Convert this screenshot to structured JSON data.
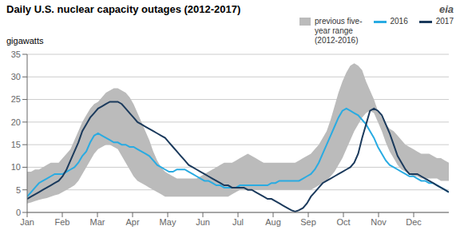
{
  "chart_data": {
    "type": "line",
    "title": "Daily U.S. nuclear capacity outages (2012-2017)",
    "ylabel": "gigawatts",
    "annotations": [
      "eia"
    ],
    "legend": "top",
    "grid": true,
    "xlim": [
      0,
      12
    ],
    "xticks": [
      {
        "value": 0,
        "label": "Jan"
      },
      {
        "value": 1,
        "label": "Feb"
      },
      {
        "value": 2,
        "label": "Mar"
      },
      {
        "value": 3,
        "label": "Apr"
      },
      {
        "value": 4,
        "label": "May"
      },
      {
        "value": 5,
        "label": "Jun"
      },
      {
        "value": 6,
        "label": "Jul"
      },
      {
        "value": 7,
        "label": "Aug"
      },
      {
        "value": 8,
        "label": "Sep"
      },
      {
        "value": 9,
        "label": "Oct"
      },
      {
        "value": 10,
        "label": "Nov"
      },
      {
        "value": 11,
        "label": "Dec"
      }
    ],
    "ylim": [
      0,
      35
    ],
    "yticks": [
      0,
      5,
      10,
      15,
      20,
      25,
      30,
      35
    ],
    "x": [
      0,
      0.1121,
      0.2243,
      0.3364,
      0.4486,
      0.5607,
      0.6729,
      0.785,
      0.8972,
      1.0093,
      1.1215,
      1.2336,
      1.3458,
      1.4579,
      1.5701,
      1.6822,
      1.7944,
      1.9065,
      2.0187,
      2.1308,
      2.243,
      2.3551,
      2.4673,
      2.5794,
      2.6916,
      2.8037,
      2.9159,
      3.028,
      3.1402,
      3.2523,
      3.3645,
      3.4766,
      3.5888,
      3.7009,
      3.8131,
      3.9252,
      4.0374,
      4.1495,
      4.2617,
      4.3738,
      4.486,
      4.5981,
      4.7103,
      4.8224,
      4.9346,
      5.0467,
      5.1589,
      5.271,
      5.3832,
      5.4953,
      5.6075,
      5.7196,
      5.8318,
      5.9439,
      6.0561,
      6.1682,
      6.2804,
      6.3925,
      6.5047,
      6.6168,
      6.729,
      6.8411,
      6.9533,
      7.0654,
      7.1776,
      7.2897,
      7.4019,
      7.514,
      7.6262,
      7.7383,
      7.8505,
      7.9626,
      8.0748,
      8.1869,
      8.2991,
      8.4112,
      8.5234,
      8.6355,
      8.7477,
      8.8598,
      8.972,
      9.0841,
      9.1963,
      9.3084,
      9.4206,
      9.5327,
      9.6449,
      9.757,
      9.8692,
      9.9813,
      10.0935,
      10.2056,
      10.3178,
      10.4299,
      10.5421,
      10.6542,
      10.7664,
      10.8785,
      10.9907,
      11.1028,
      11.215,
      11.3271,
      11.4393,
      11.5514,
      11.6636,
      11.7757,
      11.8879,
      12
    ],
    "series": [
      {
        "name": "previous five-\nyear range\n(2012-2016)",
        "type": "area",
        "color": "#BBBBBB",
        "low": [
          2.0,
          2.2,
          2.5,
          2.8,
          3.0,
          3.2,
          3.5,
          3.8,
          4.0,
          4.5,
          5.0,
          5.5,
          6.0,
          7.0,
          8.5,
          10.0,
          11.5,
          13.0,
          14.0,
          14.5,
          15.0,
          15.0,
          14.5,
          14.0,
          12.5,
          11.0,
          9.5,
          8.0,
          7.0,
          6.5,
          6.0,
          5.5,
          5.0,
          4.5,
          4.0,
          3.5,
          3.5,
          3.5,
          3.5,
          3.5,
          3.5,
          3.5,
          3.5,
          3.5,
          3.5,
          3.5,
          3.5,
          3.5,
          3.5,
          3.5,
          3.5,
          3.5,
          4.0,
          4.5,
          5.0,
          5.0,
          5.0,
          5.0,
          5.0,
          5.0,
          5.0,
          5.0,
          5.0,
          5.0,
          5.0,
          5.0,
          5.0,
          5.0,
          5.0,
          5.0,
          5.0,
          5.0,
          5.0,
          5.5,
          6.0,
          6.5,
          7.0,
          8.0,
          9.0,
          10.5,
          12.0,
          14.0,
          16.0,
          18.0,
          19.5,
          21.0,
          22.0,
          22.5,
          22.0,
          20.0,
          18.0,
          15.5,
          13.5,
          12.0,
          10.5,
          9.5,
          9.0,
          8.5,
          8.0,
          8.0,
          7.5,
          7.5,
          7.5,
          7.5,
          7.5,
          7.0,
          7.0,
          7.0
        ],
        "high": [
          9.0,
          9.0,
          9.5,
          9.5,
          10.0,
          10.5,
          11.0,
          11.0,
          11.0,
          12.0,
          13.0,
          14.0,
          16.0,
          18.0,
          20.0,
          21.5,
          23.0,
          24.0,
          24.5,
          25.5,
          26.5,
          27.0,
          27.5,
          27.5,
          27.0,
          26.5,
          25.5,
          24.0,
          22.0,
          20.0,
          18.0,
          16.0,
          13.5,
          11.5,
          10.0,
          9.0,
          8.5,
          8.0,
          7.5,
          7.5,
          7.5,
          7.5,
          7.5,
          7.5,
          8.0,
          8.5,
          9.0,
          9.5,
          10.0,
          10.5,
          11.0,
          11.0,
          11.0,
          11.5,
          12.0,
          12.5,
          13.0,
          12.5,
          12.0,
          11.5,
          11.0,
          11.0,
          11.0,
          11.0,
          11.0,
          11.0,
          11.0,
          11.0,
          11.0,
          11.5,
          12.0,
          12.5,
          13.0,
          14.0,
          15.0,
          16.5,
          18.0,
          20.5,
          23.5,
          26.5,
          29.0,
          31.0,
          32.5,
          33.0,
          32.5,
          31.5,
          29.0,
          27.0,
          25.0,
          22.5,
          21.0,
          19.5,
          18.5,
          18.0,
          17.0,
          16.0,
          15.0,
          14.5,
          14.0,
          13.5,
          13.0,
          13.0,
          13.0,
          12.5,
          12.0,
          12.0,
          11.5,
          11.0
        ]
      },
      {
        "name": "2016",
        "type": "line",
        "color": "#29ABE2",
        "values": [
          3.5,
          4.5,
          5.5,
          6.5,
          7.0,
          7.5,
          8.0,
          8.5,
          8.5,
          8.5,
          9.0,
          9.5,
          10.0,
          11.0,
          12.5,
          13.5,
          15.5,
          17.0,
          17.5,
          17.0,
          16.5,
          16.0,
          15.5,
          15.5,
          15.0,
          15.0,
          14.5,
          14.5,
          14.0,
          13.5,
          13.0,
          12.5,
          11.5,
          10.5,
          10.0,
          9.5,
          9.0,
          9.0,
          9.5,
          9.5,
          9.5,
          9.0,
          8.5,
          8.0,
          7.5,
          7.0,
          7.0,
          6.5,
          6.0,
          6.0,
          5.5,
          5.5,
          5.5,
          5.5,
          6.0,
          6.0,
          6.0,
          6.0,
          6.0,
          6.0,
          6.0,
          6.0,
          6.5,
          6.5,
          7.0,
          7.0,
          7.0,
          7.0,
          7.0,
          7.0,
          7.5,
          8.0,
          8.5,
          9.5,
          11.0,
          13.0,
          15.0,
          17.0,
          19.0,
          21.0,
          22.5,
          23.0,
          22.5,
          22.0,
          21.5,
          20.5,
          19.5,
          18.0,
          16.5,
          14.5,
          13.0,
          11.5,
          10.5,
          10.0,
          9.5,
          9.0,
          8.5,
          8.0,
          8.0,
          7.5,
          7.0,
          7.0,
          6.5,
          6.5,
          6.0,
          5.5,
          5.0,
          4.5
        ]
      },
      {
        "name": "2017",
        "type": "line",
        "color": "#1B3A5C",
        "values": [
          3.0,
          3.5,
          4.0,
          4.5,
          5.0,
          5.5,
          6.0,
          6.5,
          7.0,
          8.0,
          9.5,
          11.5,
          13.5,
          15.5,
          18.0,
          19.5,
          21.0,
          22.0,
          23.0,
          23.5,
          24.0,
          24.5,
          24.5,
          24.5,
          24.0,
          23.0,
          22.0,
          21.0,
          20.0,
          19.5,
          19.0,
          18.5,
          18.0,
          17.5,
          17.0,
          16.5,
          15.5,
          14.5,
          13.5,
          12.5,
          11.5,
          10.5,
          10.0,
          9.5,
          9.0,
          8.5,
          8.0,
          7.5,
          7.0,
          6.5,
          6.0,
          6.0,
          5.5,
          5.5,
          5.5,
          5.5,
          5.0,
          5.0,
          4.5,
          4.0,
          3.5,
          3.0,
          3.0,
          2.5,
          2.0,
          1.5,
          1.0,
          0.5,
          0.2,
          0.5,
          1.0,
          2.0,
          3.5,
          4.5,
          5.5,
          6.5,
          7.0,
          7.5,
          8.0,
          8.5,
          9.0,
          9.5,
          10.0,
          11.0,
          13.0,
          16.5,
          19.5,
          22.5,
          23.0,
          22.5,
          21.5,
          19.5,
          17.5,
          15.0,
          12.5,
          11.0,
          9.5,
          8.5,
          8.5,
          8.5,
          8.0,
          7.5,
          7.0,
          6.5,
          6.0,
          5.5,
          5.0,
          4.5
        ]
      }
    ]
  }
}
